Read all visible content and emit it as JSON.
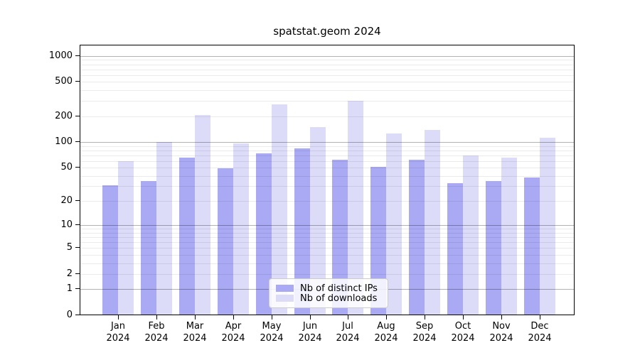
{
  "chart_data": {
    "type": "bar",
    "title": "spatstat.geom 2024",
    "categories": [
      "Jan",
      "Feb",
      "Mar",
      "Apr",
      "May",
      "Jun",
      "Jul",
      "Aug",
      "Sep",
      "Oct",
      "Nov",
      "Dec"
    ],
    "x_year_label": "2024",
    "series": [
      {
        "name": "Nb of distinct IPs",
        "color": "#a9a9f4",
        "values": [
          31,
          35,
          66,
          49,
          74,
          84,
          62,
          51,
          62,
          33,
          35,
          38
        ]
      },
      {
        "name": "Nb of downloads",
        "color": "#dcdcf8",
        "values": [
          60,
          100,
          207,
          97,
          272,
          149,
          300,
          125,
          139,
          69,
          66,
          112
        ]
      }
    ],
    "xlabel": "",
    "ylabel": "",
    "yscale": "log1p",
    "ylim": [
      0,
      1350
    ],
    "yticks": [
      0,
      1,
      2,
      5,
      10,
      20,
      50,
      100,
      200,
      500,
      1000
    ],
    "grid": "major and minor horizontal lines",
    "gridline_major_values": [
      1,
      10,
      100,
      1000
    ],
    "legend_position": "lower center"
  },
  "colors": {
    "background": "#ffffff",
    "bar_distinct_ips": "#a9a9f4",
    "bar_downloads": "#dcdcf8",
    "axis": "#000000",
    "grid_major": "#b3b3b3",
    "grid_minor": "#ebebeb",
    "legend_border": "#cccccc"
  }
}
